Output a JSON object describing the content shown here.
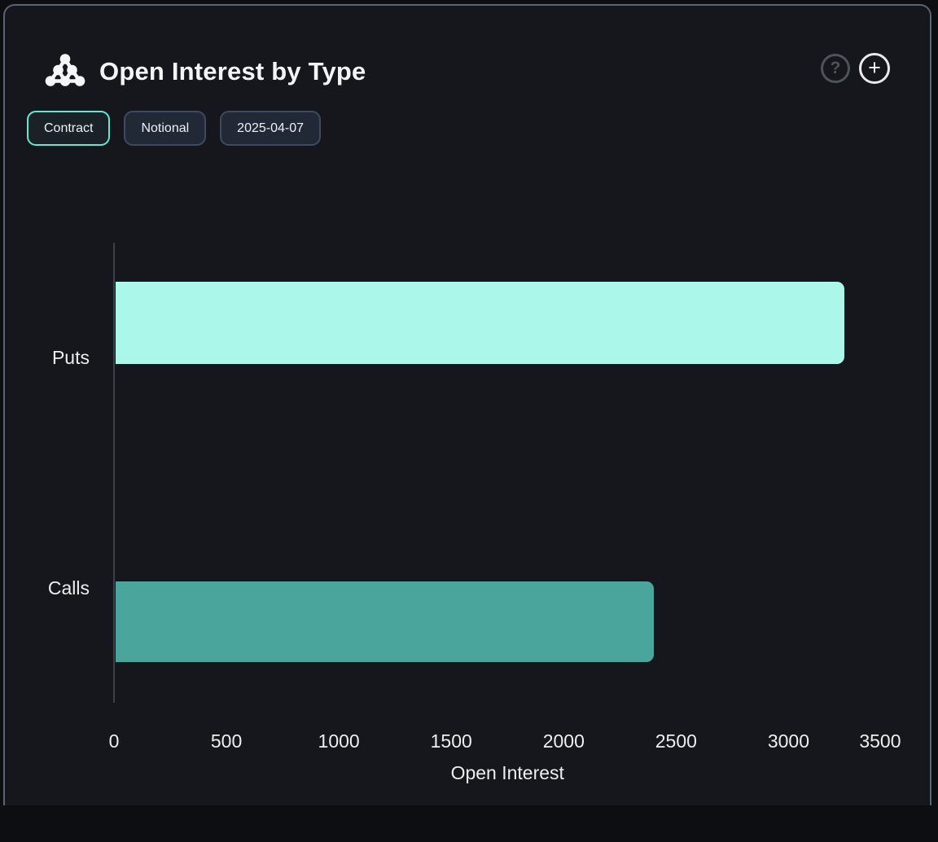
{
  "header": {
    "title": "Open Interest by Type",
    "logo_icon": "dots-pyramid-icon",
    "help_glyph": "?",
    "add_glyph": "+"
  },
  "toolbar": {
    "contract_label": "Contract",
    "notional_label": "Notional",
    "date_label": "2025-04-07"
  },
  "chart_data": {
    "type": "bar",
    "orientation": "horizontal",
    "title": "Open Interest by Type",
    "xlabel": "Open Interest",
    "ylabel": "",
    "categories": [
      "Puts",
      "Calls"
    ],
    "series": [
      {
        "name": "Puts",
        "values": [
          3250,
          null
        ],
        "color": "#abf7e9"
      },
      {
        "name": "Calls",
        "values": [
          null,
          2400
        ],
        "color": "#4aa59c"
      }
    ],
    "xlim": [
      0,
      3500
    ],
    "x_ticks": [
      0,
      500,
      1000,
      1500,
      2000,
      2500,
      3000,
      3500
    ],
    "grid": false,
    "legend": false
  },
  "colors": {
    "card_background": "#16171c",
    "card_border": "#5c6372",
    "active_pill_border": "#5eead4",
    "axis_line": "#3e4248",
    "text": "#edeef0",
    "puts_bar": "#abf7e9",
    "calls_bar": "#4aa59c"
  }
}
